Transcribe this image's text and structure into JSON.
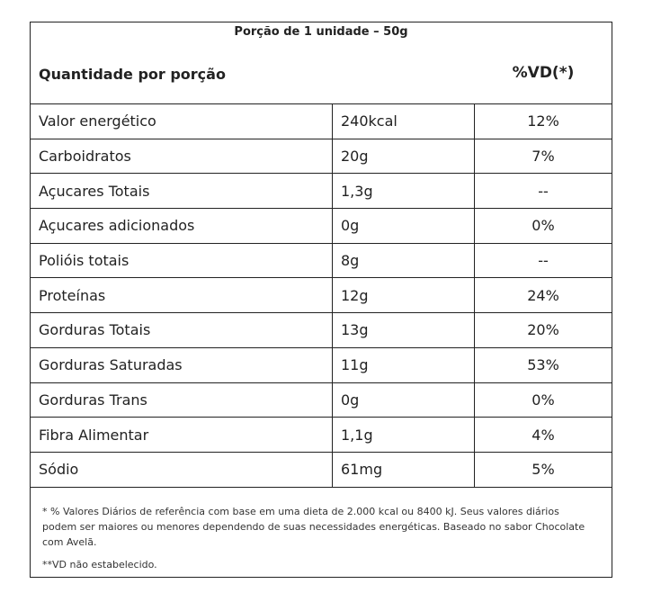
{
  "portion": "Porção de 1 unidade – 50g",
  "header": {
    "left": "Quantidade por porção",
    "right": "%VD(*)"
  },
  "rows": [
    {
      "name": "Valor energético",
      "amount": "240kcal",
      "vd": "12%"
    },
    {
      "name": "Carboidratos",
      "amount": "20g",
      "vd": "7%"
    },
    {
      "name": "Açucares Totais",
      "amount": "1,3g",
      "vd": "--"
    },
    {
      "name": "Açucares adicionados",
      "amount": "0g",
      "vd": "0%"
    },
    {
      "name": "Polióis totais",
      "amount": "8g",
      "vd": "--"
    },
    {
      "name": "Proteínas",
      "amount": "12g",
      "vd": "24%"
    },
    {
      "name": "Gorduras Totais",
      "amount": "13g",
      "vd": "20%"
    },
    {
      "name": "Gorduras Saturadas",
      "amount": "11g",
      "vd": "53%"
    },
    {
      "name": "Gorduras Trans",
      "amount": "0g",
      "vd": "0%"
    },
    {
      "name": "Fibra Alimentar",
      "amount": "1,1g",
      "vd": "4%"
    },
    {
      "name": "Sódio",
      "amount": "61mg",
      "vd": "5%"
    }
  ],
  "footnote": "* % Valores Diários de referência com base em uma dieta de 2.000 kcal ou 8400 kJ. Seus valores diários podem ser maiores ou menores dependendo de suas necessidades energéticas. Baseado no sabor Chocolate com Avelã.",
  "footnote2": "**VD não estabelecido."
}
